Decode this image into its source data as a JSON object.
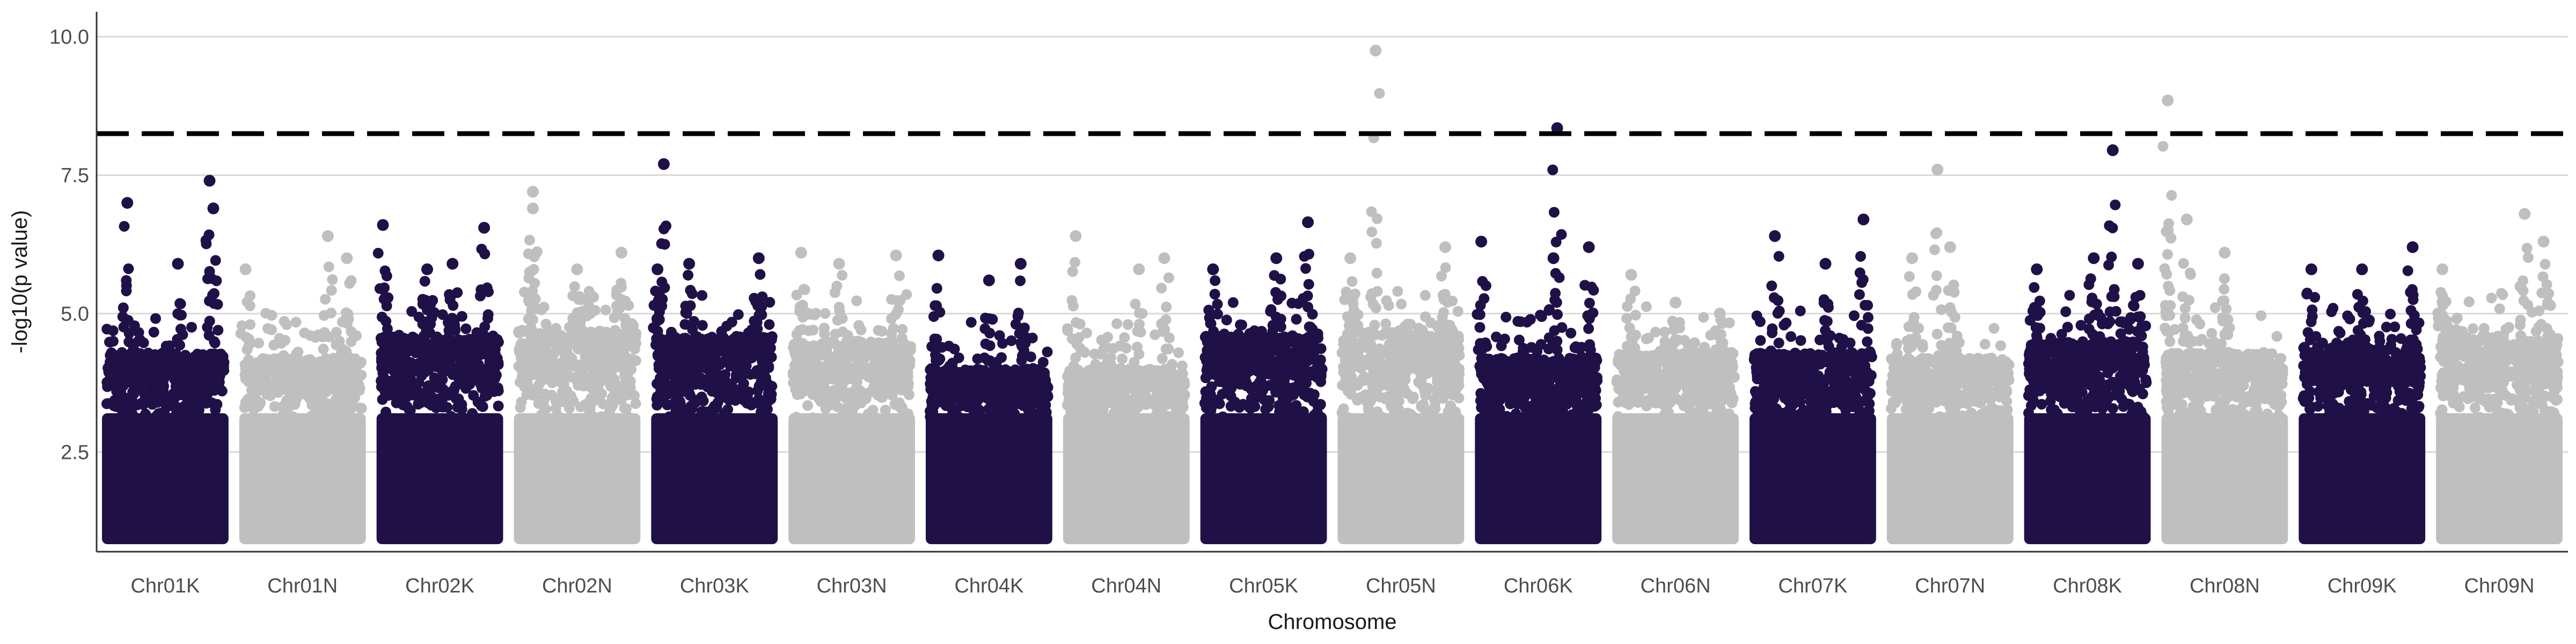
{
  "chart_data": {
    "type": "scatter",
    "title": "",
    "xlabel": "Chromosome",
    "ylabel": "-log10(p value)",
    "ylim": [
      0.7,
      10.45
    ],
    "yticks": [
      {
        "value": 2.5,
        "label": "2.5"
      },
      {
        "value": 5.0,
        "label": "5.0"
      },
      {
        "value": 7.5,
        "label": "7.5"
      },
      {
        "value": 10.0,
        "label": "10.0"
      }
    ],
    "threshold": 8.25,
    "grid": "horizontal",
    "legend": "none",
    "colors": {
      "odd": "#1f1147",
      "even": "#bfbfbf",
      "threshold": "#000000",
      "grid": "#d9d9d9",
      "axis": "#333333"
    },
    "chromosomes": [
      {
        "name": "Chr01K",
        "color": "#1f1147",
        "base_top": 4.3,
        "peaks": [
          {
            "pos": 0.85,
            "value": 7.4
          },
          {
            "pos": 0.2,
            "value": 7.0
          },
          {
            "pos": 0.88,
            "value": 6.9
          },
          {
            "pos": 0.6,
            "value": 5.9
          }
        ]
      },
      {
        "name": "Chr01N",
        "color": "#bfbfbf",
        "base_top": 4.2,
        "peaks": [
          {
            "pos": 0.7,
            "value": 6.4
          },
          {
            "pos": 0.85,
            "value": 6.0
          },
          {
            "pos": 0.05,
            "value": 5.8
          }
        ]
      },
      {
        "name": "Chr02K",
        "color": "#1f1147",
        "base_top": 4.6,
        "peaks": [
          {
            "pos": 0.05,
            "value": 6.6
          },
          {
            "pos": 0.85,
            "value": 6.55
          },
          {
            "pos": 0.4,
            "value": 5.8
          },
          {
            "pos": 0.6,
            "value": 5.9
          }
        ]
      },
      {
        "name": "Chr02N",
        "color": "#bfbfbf",
        "base_top": 4.7,
        "peaks": [
          {
            "pos": 0.15,
            "value": 7.2
          },
          {
            "pos": 0.15,
            "value": 6.9
          },
          {
            "pos": 0.85,
            "value": 6.1
          },
          {
            "pos": 0.5,
            "value": 5.8
          }
        ]
      },
      {
        "name": "Chr03K",
        "color": "#1f1147",
        "base_top": 4.6,
        "peaks": [
          {
            "pos": 0.1,
            "value": 7.7
          },
          {
            "pos": 0.85,
            "value": 6.0
          },
          {
            "pos": 0.3,
            "value": 5.9
          },
          {
            "pos": 0.05,
            "value": 5.8
          }
        ]
      },
      {
        "name": "Chr03N",
        "color": "#bfbfbf",
        "base_top": 4.5,
        "peaks": [
          {
            "pos": 0.1,
            "value": 6.1
          },
          {
            "pos": 0.85,
            "value": 6.05
          },
          {
            "pos": 0.4,
            "value": 5.9
          }
        ]
      },
      {
        "name": "Chr04K",
        "color": "#1f1147",
        "base_top": 4.0,
        "peaks": [
          {
            "pos": 0.1,
            "value": 6.05
          },
          {
            "pos": 0.75,
            "value": 5.9
          },
          {
            "pos": 0.5,
            "value": 5.6
          }
        ]
      },
      {
        "name": "Chr04N",
        "color": "#bfbfbf",
        "base_top": 4.0,
        "peaks": [
          {
            "pos": 0.1,
            "value": 6.4
          },
          {
            "pos": 0.8,
            "value": 6.0
          },
          {
            "pos": 0.6,
            "value": 5.8
          }
        ]
      },
      {
        "name": "Chr05K",
        "color": "#1f1147",
        "base_top": 4.6,
        "peaks": [
          {
            "pos": 0.85,
            "value": 6.65
          },
          {
            "pos": 0.6,
            "value": 6.0
          },
          {
            "pos": 0.1,
            "value": 5.8
          }
        ]
      },
      {
        "name": "Chr05N",
        "color": "#bfbfbf",
        "base_top": 4.7,
        "peaks": [
          {
            "pos": 0.3,
            "value": 9.75
          },
          {
            "pos": 0.85,
            "value": 6.2
          },
          {
            "pos": 0.1,
            "value": 6.0
          }
        ]
      },
      {
        "name": "Chr06K",
        "color": "#1f1147",
        "base_top": 4.2,
        "peaks": [
          {
            "pos": 0.65,
            "value": 8.35
          },
          {
            "pos": 0.05,
            "value": 6.3
          },
          {
            "pos": 0.9,
            "value": 6.2
          },
          {
            "pos": 0.62,
            "value": 6.0
          }
        ]
      },
      {
        "name": "Chr06N",
        "color": "#bfbfbf",
        "base_top": 4.3,
        "peaks": [
          {
            "pos": 0.15,
            "value": 5.7
          },
          {
            "pos": 0.5,
            "value": 5.2
          },
          {
            "pos": 0.85,
            "value": 5.0
          }
        ]
      },
      {
        "name": "Chr07K",
        "color": "#1f1147",
        "base_top": 4.3,
        "peaks": [
          {
            "pos": 0.9,
            "value": 6.7
          },
          {
            "pos": 0.2,
            "value": 6.4
          },
          {
            "pos": 0.6,
            "value": 5.9
          }
        ]
      },
      {
        "name": "Chr07N",
        "color": "#bfbfbf",
        "base_top": 4.2,
        "peaks": [
          {
            "pos": 0.4,
            "value": 7.6
          },
          {
            "pos": 0.5,
            "value": 6.2
          },
          {
            "pos": 0.2,
            "value": 6.0
          }
        ]
      },
      {
        "name": "Chr08K",
        "color": "#1f1147",
        "base_top": 4.5,
        "peaks": [
          {
            "pos": 0.7,
            "value": 7.95
          },
          {
            "pos": 0.9,
            "value": 5.9
          },
          {
            "pos": 0.1,
            "value": 5.8
          },
          {
            "pos": 0.55,
            "value": 6.0
          }
        ]
      },
      {
        "name": "Chr08N",
        "color": "#bfbfbf",
        "base_top": 4.3,
        "peaks": [
          {
            "pos": 0.05,
            "value": 8.85
          },
          {
            "pos": 0.2,
            "value": 6.7
          },
          {
            "pos": 0.05,
            "value": 6.5
          },
          {
            "pos": 0.5,
            "value": 6.1
          }
        ]
      },
      {
        "name": "Chr09K",
        "color": "#1f1147",
        "base_top": 4.4,
        "peaks": [
          {
            "pos": 0.9,
            "value": 6.2
          },
          {
            "pos": 0.1,
            "value": 5.8
          },
          {
            "pos": 0.5,
            "value": 5.8
          }
        ]
      },
      {
        "name": "Chr09N",
        "color": "#bfbfbf",
        "base_top": 4.6,
        "peaks": [
          {
            "pos": 0.7,
            "value": 6.8
          },
          {
            "pos": 0.85,
            "value": 6.3
          },
          {
            "pos": 0.05,
            "value": 5.8
          }
        ]
      }
    ]
  }
}
